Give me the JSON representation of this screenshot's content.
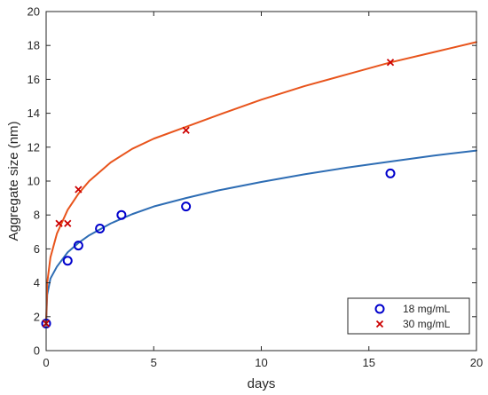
{
  "chart_data": {
    "type": "scatter",
    "title": "",
    "xlabel": "days",
    "ylabel": "Aggregate size (nm)",
    "xlim": [
      0,
      20
    ],
    "ylim": [
      0,
      20
    ],
    "xticks": [
      0,
      5,
      10,
      15,
      20
    ],
    "yticks": [
      0,
      2,
      4,
      6,
      8,
      10,
      12,
      14,
      16,
      18,
      20
    ],
    "grid": false,
    "legend_position": "bottom-right",
    "series": [
      {
        "name": "18 mg/mL",
        "marker": "circle",
        "color": "#0000cc",
        "points": [
          {
            "x": 0,
            "y": 1.6
          },
          {
            "x": 1,
            "y": 5.3
          },
          {
            "x": 1.5,
            "y": 6.2
          },
          {
            "x": 2.5,
            "y": 7.2
          },
          {
            "x": 3.5,
            "y": 8.0
          },
          {
            "x": 6.5,
            "y": 8.5
          },
          {
            "x": 16,
            "y": 10.45
          }
        ]
      },
      {
        "name": "30 mg/mL",
        "marker": "x",
        "color": "#cc0000",
        "points": [
          {
            "x": 0,
            "y": 1.6
          },
          {
            "x": 0.6,
            "y": 7.5
          },
          {
            "x": 1,
            "y": 7.5
          },
          {
            "x": 1.5,
            "y": 9.5
          },
          {
            "x": 6.5,
            "y": 13.0
          },
          {
            "x": 16,
            "y": 17.0
          }
        ]
      }
    ],
    "fits": [
      {
        "color": "#2e6db4",
        "x": [
          0,
          0.05,
          0.2,
          0.5,
          1,
          1.5,
          2,
          3,
          4,
          5,
          6.5,
          8,
          10,
          12,
          14,
          16,
          18,
          20
        ],
        "y": [
          1.6,
          3.3,
          4.25,
          4.95,
          5.8,
          6.35,
          6.8,
          7.5,
          8.05,
          8.5,
          9.0,
          9.45,
          9.95,
          10.4,
          10.8,
          11.15,
          11.5,
          11.8
        ]
      },
      {
        "color": "#e8541c",
        "x": [
          0,
          0.05,
          0.2,
          0.5,
          1,
          1.5,
          2,
          3,
          4,
          5,
          6.5,
          8,
          10,
          12,
          14,
          16,
          18,
          20
        ],
        "y": [
          1.6,
          4.0,
          5.5,
          6.9,
          8.3,
          9.25,
          10.0,
          11.1,
          11.9,
          12.5,
          13.2,
          13.9,
          14.8,
          15.6,
          16.3,
          17.0,
          17.6,
          18.2
        ]
      }
    ]
  }
}
